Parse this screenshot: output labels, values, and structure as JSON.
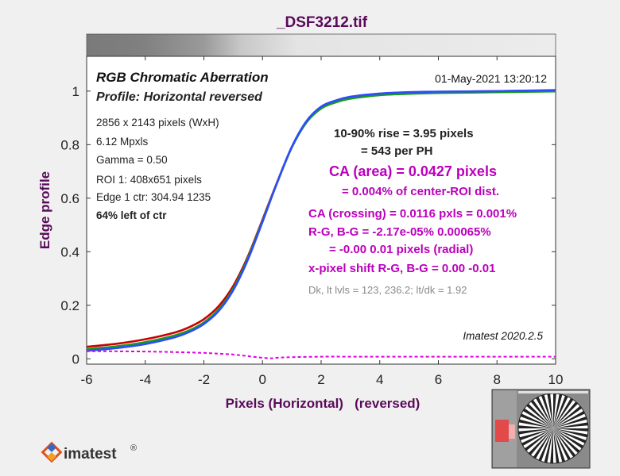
{
  "window": {
    "title": "_DSF3212.tif"
  },
  "chart_data": {
    "type": "line",
    "title": "RGB Chromatic Aberration",
    "subtitle": "Profile: Horizontal reversed",
    "date": "01-May-2021 13:20:12",
    "xlabel": "Pixels (Horizontal)   (reversed)",
    "ylabel": "Edge profile",
    "xlim": [
      -6,
      10
    ],
    "ylim": [
      -0.02,
      1.13
    ],
    "xticks": [
      -6,
      -4,
      -2,
      0,
      2,
      4,
      6,
      8,
      10
    ],
    "yticks": [
      0,
      0.2,
      0.4,
      0.6,
      0.8,
      1
    ],
    "xtick_labels": [
      "-6",
      "-4",
      "-2",
      "0",
      "2",
      "4",
      "6",
      "8",
      "10"
    ],
    "ytick_labels": [
      "0",
      "0.2",
      "0.4",
      "0.6",
      "0.8",
      "1"
    ],
    "grid": false,
    "series_style": {
      "red": "#cc0000",
      "green": "#1a9a1a",
      "blue": "#2b4cff",
      "diff": "#e000e0"
    },
    "info_left": [
      "2856 x 2143 pixels (WxH)",
      "6.12 Mpxls",
      "Gamma = 0.50",
      "ROI 1: 408x651 pixels",
      "Edge 1 ctr: 304.94  1235",
      "64% left of ctr"
    ],
    "annotations": {
      "rise": "10-90% rise = 3.95 pixels",
      "per_ph": "= 543 per PH",
      "ca_area": "CA (area) = 0.0427 pixels",
      "ca_area_pct": "= 0.004% of center-ROI dist.",
      "ca_crossing": "CA (crossing) = 0.0116 pxls = 0.001%",
      "rg_bg": "R-G, B-G = -2.17e-05%  0.00065%",
      "radial": "= -0.00  0.01 pixels (radial)",
      "shift": "x-pixel shift R-G, B-G = 0.00  -0.01",
      "levels": "Dk, lt lvls = 123, 236.2;  lt/dk = 1.92",
      "version": "Imatest 2020.2.5"
    },
    "series": [
      {
        "key": "red",
        "x": [
          -6,
          -5,
          -4,
          -3,
          -2.5,
          -2,
          -1.5,
          -1,
          -0.5,
          0,
          0.5,
          1,
          1.5,
          2,
          2.5,
          3,
          4,
          5,
          6,
          8,
          10
        ],
        "y": [
          0.045,
          0.056,
          0.073,
          0.098,
          0.118,
          0.148,
          0.196,
          0.272,
          0.382,
          0.52,
          0.66,
          0.79,
          0.885,
          0.94,
          0.963,
          0.978,
          0.99,
          0.995,
          0.997,
          1.0,
          1.002
        ]
      },
      {
        "key": "green",
        "x": [
          -6,
          -5,
          -4,
          -3,
          -2.5,
          -2,
          -1.5,
          -1,
          -0.5,
          0,
          0.5,
          1,
          1.5,
          2,
          2.5,
          3,
          4,
          5,
          6,
          8,
          10
        ],
        "y": [
          0.036,
          0.046,
          0.062,
          0.087,
          0.106,
          0.136,
          0.184,
          0.262,
          0.376,
          0.516,
          0.658,
          0.79,
          0.883,
          0.935,
          0.958,
          0.972,
          0.985,
          0.99,
          0.993,
          0.996,
          0.999
        ]
      },
      {
        "key": "blue",
        "x": [
          -6,
          -5,
          -4,
          -3,
          -2.5,
          -2,
          -1.5,
          -1,
          -0.5,
          0,
          0.5,
          1,
          1.5,
          2,
          2.5,
          3,
          4,
          5,
          6,
          8,
          10
        ],
        "y": [
          0.03,
          0.04,
          0.055,
          0.08,
          0.1,
          0.13,
          0.178,
          0.256,
          0.37,
          0.512,
          0.658,
          0.792,
          0.888,
          0.942,
          0.965,
          0.979,
          0.991,
          0.996,
          0.998,
          1.0,
          1.004
        ]
      },
      {
        "key": "diff",
        "x": [
          -6,
          -5,
          -4,
          -3,
          -2,
          -1.5,
          -1,
          -0.5,
          0,
          0.3,
          0.5,
          1,
          2,
          3,
          4,
          6,
          8,
          10
        ],
        "y": [
          0.028,
          0.028,
          0.027,
          0.025,
          0.022,
          0.019,
          0.016,
          0.01,
          0.004,
          0.002,
          0.004,
          0.006,
          0.008,
          0.008,
          0.008,
          0.008,
          0.008,
          0.008
        ]
      }
    ]
  },
  "logo": {
    "text": "imatest",
    "mark": "®"
  }
}
